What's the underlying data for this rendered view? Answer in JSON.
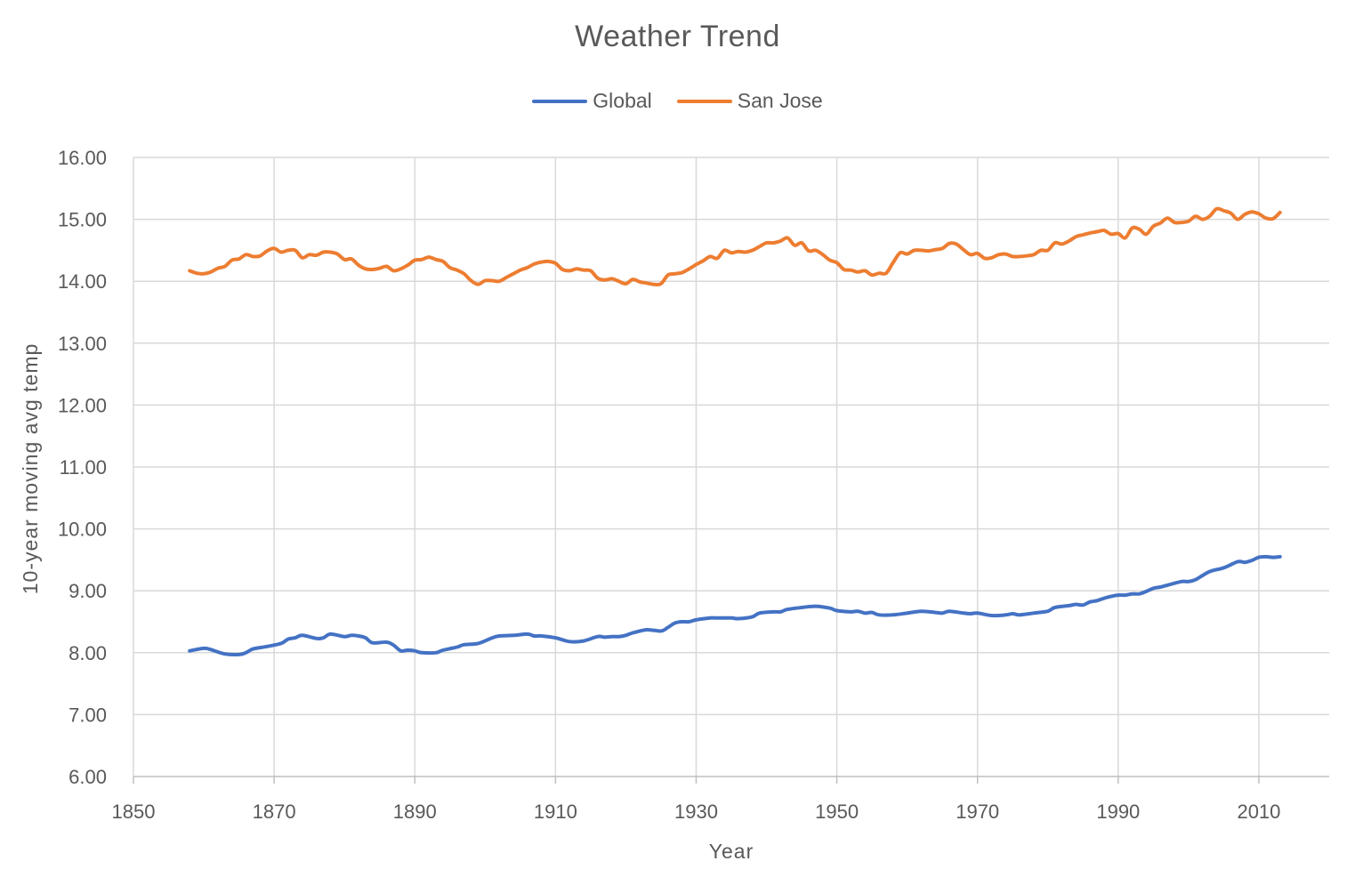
{
  "chart_data": {
    "type": "line",
    "title": "Weather Trend",
    "xlabel": "Year",
    "ylabel": "10-year moving avg temp",
    "xlim": [
      1850,
      2020
    ],
    "ylim": [
      6,
      16
    ],
    "x_ticks": [
      1850,
      1870,
      1890,
      1910,
      1930,
      1950,
      1970,
      1990,
      2010
    ],
    "y_ticks": [
      "6.00",
      "7.00",
      "8.00",
      "9.00",
      "10.00",
      "11.00",
      "12.00",
      "13.00",
      "14.00",
      "15.00",
      "16.00"
    ],
    "grid": true,
    "legend_position": "top-center",
    "series": [
      {
        "name": "Global",
        "color": "#4472c4",
        "points": [
          [
            1858,
            8.03
          ],
          [
            1860,
            8.07
          ],
          [
            1861,
            8.05
          ],
          [
            1863,
            7.98
          ],
          [
            1865,
            7.97
          ],
          [
            1866,
            8.0
          ],
          [
            1867,
            8.06
          ],
          [
            1869,
            8.1
          ],
          [
            1871,
            8.15
          ],
          [
            1872,
            8.22
          ],
          [
            1873,
            8.24
          ],
          [
            1874,
            8.28
          ],
          [
            1876,
            8.23
          ],
          [
            1877,
            8.24
          ],
          [
            1878,
            8.3
          ],
          [
            1880,
            8.26
          ],
          [
            1881,
            8.28
          ],
          [
            1882,
            8.27
          ],
          [
            1883,
            8.24
          ],
          [
            1884,
            8.16
          ],
          [
            1886,
            8.17
          ],
          [
            1887,
            8.12
          ],
          [
            1888,
            8.03
          ],
          [
            1889,
            8.04
          ],
          [
            1890,
            8.03
          ],
          [
            1891,
            8.0
          ],
          [
            1893,
            8.0
          ],
          [
            1894,
            8.04
          ],
          [
            1896,
            8.09
          ],
          [
            1897,
            8.13
          ],
          [
            1899,
            8.15
          ],
          [
            1901,
            8.24
          ],
          [
            1902,
            8.27
          ],
          [
            1904,
            8.28
          ],
          [
            1906,
            8.3
          ],
          [
            1907,
            8.27
          ],
          [
            1908,
            8.27
          ],
          [
            1910,
            8.24
          ],
          [
            1912,
            8.18
          ],
          [
            1914,
            8.19
          ],
          [
            1916,
            8.26
          ],
          [
            1917,
            8.25
          ],
          [
            1918,
            8.26
          ],
          [
            1919,
            8.26
          ],
          [
            1920,
            8.28
          ],
          [
            1921,
            8.32
          ],
          [
            1923,
            8.37
          ],
          [
            1925,
            8.35
          ],
          [
            1926,
            8.41
          ],
          [
            1927,
            8.48
          ],
          [
            1928,
            8.5
          ],
          [
            1929,
            8.5
          ],
          [
            1930,
            8.53
          ],
          [
            1932,
            8.56
          ],
          [
            1933,
            8.56
          ],
          [
            1935,
            8.56
          ],
          [
            1936,
            8.55
          ],
          [
            1938,
            8.58
          ],
          [
            1939,
            8.64
          ],
          [
            1941,
            8.66
          ],
          [
            1942,
            8.66
          ],
          [
            1943,
            8.7
          ],
          [
            1945,
            8.73
          ],
          [
            1947,
            8.75
          ],
          [
            1949,
            8.72
          ],
          [
            1950,
            8.68
          ],
          [
            1952,
            8.66
          ],
          [
            1953,
            8.67
          ],
          [
            1954,
            8.64
          ],
          [
            1955,
            8.65
          ],
          [
            1956,
            8.61
          ],
          [
            1958,
            8.61
          ],
          [
            1960,
            8.64
          ],
          [
            1962,
            8.67
          ],
          [
            1964,
            8.65
          ],
          [
            1965,
            8.64
          ],
          [
            1966,
            8.67
          ],
          [
            1968,
            8.64
          ],
          [
            1969,
            8.63
          ],
          [
            1970,
            8.64
          ],
          [
            1972,
            8.6
          ],
          [
            1974,
            8.61
          ],
          [
            1975,
            8.63
          ],
          [
            1976,
            8.61
          ],
          [
            1978,
            8.64
          ],
          [
            1980,
            8.67
          ],
          [
            1981,
            8.73
          ],
          [
            1983,
            8.76
          ],
          [
            1984,
            8.78
          ],
          [
            1985,
            8.77
          ],
          [
            1986,
            8.82
          ],
          [
            1987,
            8.84
          ],
          [
            1988,
            8.88
          ],
          [
            1989,
            8.91
          ],
          [
            1990,
            8.93
          ],
          [
            1991,
            8.93
          ],
          [
            1992,
            8.95
          ],
          [
            1993,
            8.95
          ],
          [
            1994,
            8.99
          ],
          [
            1995,
            9.04
          ],
          [
            1996,
            9.06
          ],
          [
            1997,
            9.09
          ],
          [
            1999,
            9.15
          ],
          [
            2000,
            9.15
          ],
          [
            2001,
            9.18
          ],
          [
            2003,
            9.31
          ],
          [
            2005,
            9.37
          ],
          [
            2007,
            9.47
          ],
          [
            2008,
            9.46
          ],
          [
            2009,
            9.49
          ],
          [
            2010,
            9.54
          ],
          [
            2011,
            9.55
          ],
          [
            2012,
            9.54
          ],
          [
            2013,
            9.55
          ]
        ]
      },
      {
        "name": "San Jose",
        "color": "#ed7d31",
        "points": [
          [
            1858,
            14.17
          ],
          [
            1859,
            14.13
          ],
          [
            1860,
            14.12
          ],
          [
            1861,
            14.15
          ],
          [
            1862,
            14.21
          ],
          [
            1863,
            14.24
          ],
          [
            1864,
            14.34
          ],
          [
            1865,
            14.36
          ],
          [
            1866,
            14.43
          ],
          [
            1867,
            14.4
          ],
          [
            1868,
            14.41
          ],
          [
            1869,
            14.49
          ],
          [
            1870,
            14.53
          ],
          [
            1871,
            14.47
          ],
          [
            1872,
            14.5
          ],
          [
            1873,
            14.5
          ],
          [
            1874,
            14.38
          ],
          [
            1875,
            14.43
          ],
          [
            1876,
            14.42
          ],
          [
            1877,
            14.47
          ],
          [
            1878,
            14.47
          ],
          [
            1879,
            14.44
          ],
          [
            1880,
            14.35
          ],
          [
            1881,
            14.36
          ],
          [
            1882,
            14.26
          ],
          [
            1883,
            14.2
          ],
          [
            1884,
            14.19
          ],
          [
            1885,
            14.21
          ],
          [
            1886,
            14.24
          ],
          [
            1887,
            14.17
          ],
          [
            1888,
            14.2
          ],
          [
            1889,
            14.26
          ],
          [
            1890,
            14.34
          ],
          [
            1891,
            14.35
          ],
          [
            1892,
            14.39
          ],
          [
            1893,
            14.35
          ],
          [
            1894,
            14.32
          ],
          [
            1895,
            14.22
          ],
          [
            1896,
            14.18
          ],
          [
            1897,
            14.12
          ],
          [
            1898,
            14.01
          ],
          [
            1899,
            13.95
          ],
          [
            1900,
            14.01
          ],
          [
            1901,
            14.01
          ],
          [
            1902,
            14.0
          ],
          [
            1903,
            14.06
          ],
          [
            1904,
            14.12
          ],
          [
            1905,
            14.18
          ],
          [
            1906,
            14.22
          ],
          [
            1907,
            14.28
          ],
          [
            1908,
            14.31
          ],
          [
            1909,
            14.32
          ],
          [
            1910,
            14.29
          ],
          [
            1911,
            14.19
          ],
          [
            1912,
            14.17
          ],
          [
            1913,
            14.2
          ],
          [
            1914,
            14.18
          ],
          [
            1915,
            14.17
          ],
          [
            1916,
            14.05
          ],
          [
            1917,
            14.02
          ],
          [
            1918,
            14.04
          ],
          [
            1919,
            14.0
          ],
          [
            1920,
            13.96
          ],
          [
            1921,
            14.03
          ],
          [
            1922,
            13.99
          ],
          [
            1923,
            13.97
          ],
          [
            1924,
            13.95
          ],
          [
            1925,
            13.96
          ],
          [
            1926,
            14.1
          ],
          [
            1927,
            14.12
          ],
          [
            1928,
            14.14
          ],
          [
            1929,
            14.2
          ],
          [
            1930,
            14.27
          ],
          [
            1931,
            14.33
          ],
          [
            1932,
            14.4
          ],
          [
            1933,
            14.37
          ],
          [
            1934,
            14.5
          ],
          [
            1935,
            14.46
          ],
          [
            1936,
            14.48
          ],
          [
            1937,
            14.47
          ],
          [
            1938,
            14.5
          ],
          [
            1939,
            14.56
          ],
          [
            1940,
            14.62
          ],
          [
            1941,
            14.62
          ],
          [
            1942,
            14.65
          ],
          [
            1943,
            14.7
          ],
          [
            1944,
            14.58
          ],
          [
            1945,
            14.62
          ],
          [
            1946,
            14.49
          ],
          [
            1947,
            14.5
          ],
          [
            1948,
            14.43
          ],
          [
            1949,
            14.34
          ],
          [
            1950,
            14.3
          ],
          [
            1951,
            14.19
          ],
          [
            1952,
            14.18
          ],
          [
            1953,
            14.15
          ],
          [
            1954,
            14.17
          ],
          [
            1955,
            14.1
          ],
          [
            1956,
            14.13
          ],
          [
            1957,
            14.13
          ],
          [
            1958,
            14.3
          ],
          [
            1959,
            14.46
          ],
          [
            1960,
            14.44
          ],
          [
            1961,
            14.5
          ],
          [
            1962,
            14.5
          ],
          [
            1963,
            14.49
          ],
          [
            1964,
            14.51
          ],
          [
            1965,
            14.53
          ],
          [
            1966,
            14.61
          ],
          [
            1967,
            14.6
          ],
          [
            1968,
            14.51
          ],
          [
            1969,
            14.43
          ],
          [
            1970,
            14.45
          ],
          [
            1971,
            14.37
          ],
          [
            1972,
            14.38
          ],
          [
            1973,
            14.43
          ],
          [
            1974,
            14.44
          ],
          [
            1975,
            14.4
          ],
          [
            1976,
            14.4
          ],
          [
            1977,
            14.41
          ],
          [
            1978,
            14.43
          ],
          [
            1979,
            14.5
          ],
          [
            1980,
            14.5
          ],
          [
            1981,
            14.62
          ],
          [
            1982,
            14.6
          ],
          [
            1983,
            14.65
          ],
          [
            1984,
            14.72
          ],
          [
            1985,
            14.75
          ],
          [
            1986,
            14.78
          ],
          [
            1987,
            14.8
          ],
          [
            1988,
            14.82
          ],
          [
            1989,
            14.76
          ],
          [
            1990,
            14.77
          ],
          [
            1991,
            14.7
          ],
          [
            1992,
            14.86
          ],
          [
            1993,
            14.84
          ],
          [
            1994,
            14.76
          ],
          [
            1995,
            14.89
          ],
          [
            1996,
            14.94
          ],
          [
            1997,
            15.02
          ],
          [
            1998,
            14.95
          ],
          [
            1999,
            14.95
          ],
          [
            2000,
            14.97
          ],
          [
            2001,
            15.05
          ],
          [
            2002,
            15.0
          ],
          [
            2003,
            15.05
          ],
          [
            2004,
            15.17
          ],
          [
            2005,
            15.14
          ],
          [
            2006,
            15.1
          ],
          [
            2007,
            15.0
          ],
          [
            2008,
            15.08
          ],
          [
            2009,
            15.12
          ],
          [
            2010,
            15.09
          ],
          [
            2011,
            15.02
          ],
          [
            2012,
            15.01
          ],
          [
            2013,
            15.11
          ]
        ]
      }
    ]
  }
}
